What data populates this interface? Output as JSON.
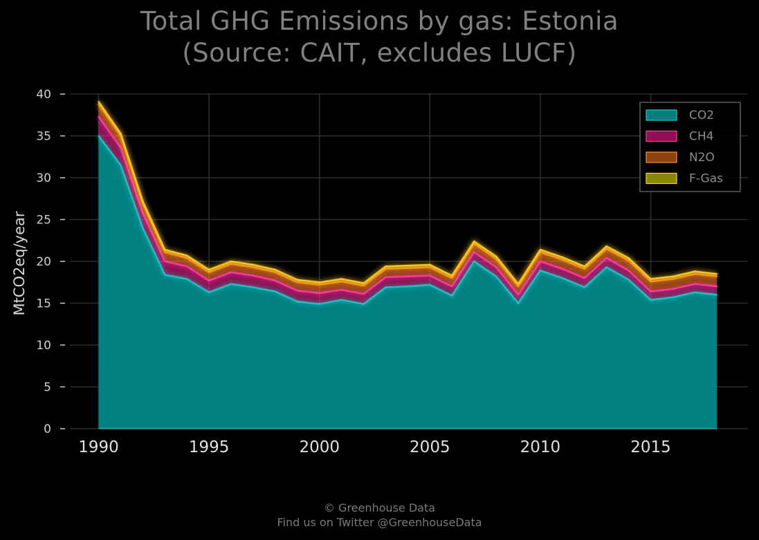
{
  "chart_data": {
    "type": "area",
    "stacked": true,
    "title_line1": "Total GHG Emissions by gas: Estonia",
    "title_line2": "(Source: CAIT, excludes LUCF)",
    "xlabel": "",
    "ylabel": "MtCO2eq/year",
    "xlim": [
      1988.7,
      2019.4
    ],
    "ylim": [
      0,
      40.5
    ],
    "xticks": [
      1990,
      1995,
      2000,
      2005,
      2010,
      2015
    ],
    "yticks": [
      0,
      5,
      10,
      15,
      20,
      25,
      30,
      35,
      40
    ],
    "grid": true,
    "legend_position": "top-right",
    "x": [
      1990,
      1991,
      1992,
      1993,
      1994,
      1995,
      1996,
      1997,
      1998,
      1999,
      2000,
      2001,
      2002,
      2003,
      2004,
      2005,
      2006,
      2007,
      2008,
      2009,
      2010,
      2011,
      2012,
      2013,
      2014,
      2015,
      2016,
      2017,
      2018
    ],
    "series": [
      {
        "name": "CO2",
        "color": "#008b8b",
        "line_color": "#20c8c8",
        "values": [
          35.0,
          31.5,
          24.0,
          18.4,
          17.9,
          16.3,
          17.3,
          16.9,
          16.4,
          15.2,
          14.9,
          15.4,
          14.9,
          16.9,
          17.0,
          17.2,
          15.9,
          20.0,
          18.2,
          15.0,
          18.9,
          18.0,
          16.9,
          19.3,
          17.8,
          15.4,
          15.7,
          16.3,
          16.0
        ]
      },
      {
        "name": "CH4",
        "color": "#ff1e96",
        "line_color": "#ff3ca8",
        "values": [
          2.3,
          2.1,
          1.8,
          1.6,
          1.5,
          1.4,
          1.4,
          1.4,
          1.3,
          1.3,
          1.3,
          1.2,
          1.2,
          1.2,
          1.2,
          1.1,
          1.1,
          1.1,
          1.1,
          1.0,
          1.1,
          1.1,
          1.1,
          1.1,
          1.1,
          1.0,
          1.0,
          1.0,
          1.0
        ]
      },
      {
        "name": "N2O",
        "color": "#ff7a1a",
        "line_color": "#ff8a30",
        "values": [
          1.5,
          1.4,
          1.1,
          1.1,
          1.0,
          1.0,
          1.0,
          1.0,
          1.0,
          1.0,
          1.0,
          1.0,
          1.0,
          1.0,
          1.0,
          1.0,
          1.0,
          1.0,
          1.0,
          1.0,
          1.1,
          1.1,
          1.1,
          1.1,
          1.2,
          1.2,
          1.2,
          1.2,
          1.2
        ]
      },
      {
        "name": "F-Gas",
        "color": "#f5f500",
        "line_color": "#ffd21a",
        "values": [
          0.3,
          0.3,
          0.3,
          0.3,
          0.3,
          0.3,
          0.3,
          0.3,
          0.3,
          0.3,
          0.3,
          0.3,
          0.3,
          0.3,
          0.3,
          0.3,
          0.3,
          0.3,
          0.3,
          0.3,
          0.3,
          0.3,
          0.3,
          0.3,
          0.3,
          0.3,
          0.3,
          0.3,
          0.3
        ]
      }
    ]
  },
  "footer": {
    "line1": "© Greenhouse Data",
    "line2": "Find us on Twitter @GreenhouseData"
  }
}
